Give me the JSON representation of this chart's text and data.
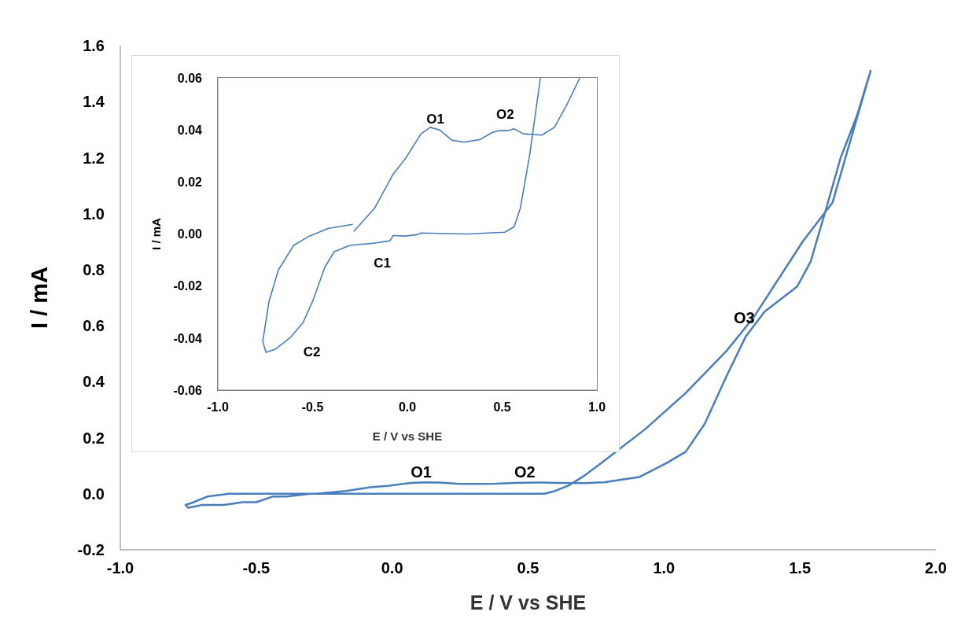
{
  "chart_data": [
    {
      "type": "line",
      "xlabel": "E / V vs SHE",
      "ylabel": "I / mA",
      "xlim": [
        -1.0,
        2.0
      ],
      "xticks": [
        {
          "value": -1.0,
          "label": "-1.0"
        },
        {
          "value": -0.5,
          "label": "-0.5"
        },
        {
          "value": 0,
          "label": "0.0"
        },
        {
          "value": 0.5,
          "label": "0.5"
        },
        {
          "value": 1.0,
          "label": "1.0"
        },
        {
          "value": 1.5,
          "label": "1.5"
        },
        {
          "value": 2.0,
          "label": "2.0"
        }
      ],
      "ylim": [
        -0.2,
        1.6
      ],
      "yticks": [
        {
          "value": -0.2,
          "label": "-0.2"
        },
        {
          "value": 0,
          "label": "0.0"
        },
        {
          "value": 0.2,
          "label": "0.2"
        },
        {
          "value": 0.4,
          "label": "0.4"
        },
        {
          "value": 0.6,
          "label": "0.6"
        },
        {
          "value": 0.8,
          "label": "0.8"
        },
        {
          "value": 1.0,
          "label": "1.0"
        },
        {
          "value": 1.2,
          "label": "1.2"
        },
        {
          "value": 1.4,
          "label": "1.4"
        },
        {
          "value": 1.6,
          "label": "1.6"
        }
      ],
      "series": [
        {
          "color": "#4a7ebb",
          "x": [
            -0.28,
            -0.17,
            -0.08,
            -0.01,
            0.07,
            0.12,
            0.17,
            0.24,
            0.3,
            0.38,
            0.45,
            0.53,
            0.56,
            0.61,
            0.71,
            0.78,
            0.84,
            0.91,
            1.01,
            1.08,
            1.15,
            1.23,
            1.3,
            1.37,
            1.49,
            1.54,
            1.6,
            1.65,
            1.71,
            1.76,
            1.62,
            1.51,
            1.33,
            1.23,
            1.08,
            0.93,
            0.77,
            0.7,
            0.65,
            0.6,
            0.56,
            0.51,
            0.32,
            0.07,
            -0.01,
            -0.09,
            -0.17,
            -0.3,
            -0.39,
            -0.44,
            -0.5,
            -0.55,
            -0.62,
            -0.7,
            -0.75,
            -0.76,
            -0.73,
            -0.68,
            -0.6,
            -0.52,
            -0.42,
            -0.29
          ],
          "values": [
            0.0,
            0.01,
            0.023,
            0.029,
            0.039,
            0.041,
            0.04,
            0.036,
            0.035,
            0.036,
            0.039,
            0.04,
            0.04,
            0.039,
            0.038,
            0.041,
            0.05,
            0.06,
            0.11,
            0.15,
            0.25,
            0.42,
            0.56,
            0.65,
            0.74,
            0.83,
            1.03,
            1.2,
            1.35,
            1.51,
            1.04,
            0.9,
            0.63,
            0.51,
            0.36,
            0.23,
            0.11,
            0.06,
            0.03,
            0.01,
            0.0,
            0.0,
            0.0,
            0.0,
            0.0,
            0.0,
            0.0,
            0.0,
            -0.01,
            -0.01,
            -0.03,
            -0.03,
            -0.04,
            -0.04,
            -0.05,
            -0.04,
            -0.03,
            -0.01,
            0.0,
            0.0,
            0.0,
            0.0
          ]
        }
      ],
      "annotations": [
        "O1",
        "O2",
        "O3"
      ]
    },
    {
      "type": "line",
      "xlabel": "E / V vs SHE",
      "ylabel": "I / mA",
      "xlim": [
        -1.0,
        1.0
      ],
      "xticks": [
        {
          "value": -1.0,
          "label": "-1.0"
        },
        {
          "value": -0.5,
          "label": "-0.5"
        },
        {
          "value": 0,
          "label": "0.0"
        },
        {
          "value": 0.5,
          "label": "0.5"
        },
        {
          "value": 1.0,
          "label": "1.0"
        }
      ],
      "ylim": [
        -0.06,
        0.06
      ],
      "yticks": [
        {
          "value": -0.06,
          "label": "-0.06"
        },
        {
          "value": -0.04,
          "label": "-0.04"
        },
        {
          "value": -0.02,
          "label": "-0.02"
        },
        {
          "value": 0,
          "label": "0.00"
        },
        {
          "value": 0.02,
          "label": "0.02"
        },
        {
          "value": 0.04,
          "label": "0.04"
        },
        {
          "value": 0.06,
          "label": "0.06"
        }
      ],
      "series": [
        {
          "color": "#4a7ebb",
          "x": [
            -0.283,
            -0.173,
            -0.075,
            -0.01,
            0.072,
            0.121,
            0.17,
            0.236,
            0.3,
            0.383,
            0.448,
            0.481,
            0.53,
            0.563,
            0.612,
            0.71,
            0.776,
            0.841,
            0.91
          ],
          "values": [
            0.001,
            0.0099,
            0.023,
            0.029,
            0.0385,
            0.041,
            0.04,
            0.036,
            0.0353,
            0.0363,
            0.039,
            0.0397,
            0.0397,
            0.0404,
            0.0385,
            0.038,
            0.041,
            0.0496,
            0.06
          ]
        },
        {
          "color": "#4a7ebb",
          "x": [
            0.702,
            0.645,
            0.596,
            0.563,
            0.514,
            0.317,
            0.072,
            0.056,
            -0.01,
            -0.075,
            -0.092,
            -0.173,
            -0.304,
            -0.386,
            -0.435,
            -0.5,
            -0.55,
            -0.615,
            -0.697,
            -0.746,
            -0.763,
            -0.73,
            -0.681,
            -0.6,
            -0.517,
            -0.419,
            -0.288
          ],
          "values": [
            0.06,
            0.0302,
            0.0099,
            0.0027,
            0.0007,
            0.0,
            0.0004,
            -0.0002,
            -0.0008,
            -0.0006,
            -0.0026,
            -0.0035,
            -0.0044,
            -0.0068,
            -0.0127,
            -0.0259,
            -0.034,
            -0.0396,
            -0.0443,
            -0.0455,
            -0.0413,
            -0.0259,
            -0.0139,
            -0.0044,
            -0.0008,
            0.0021,
            0.0037
          ]
        }
      ],
      "annotations": [
        "O1",
        "O2",
        "C1",
        "C2"
      ]
    }
  ]
}
